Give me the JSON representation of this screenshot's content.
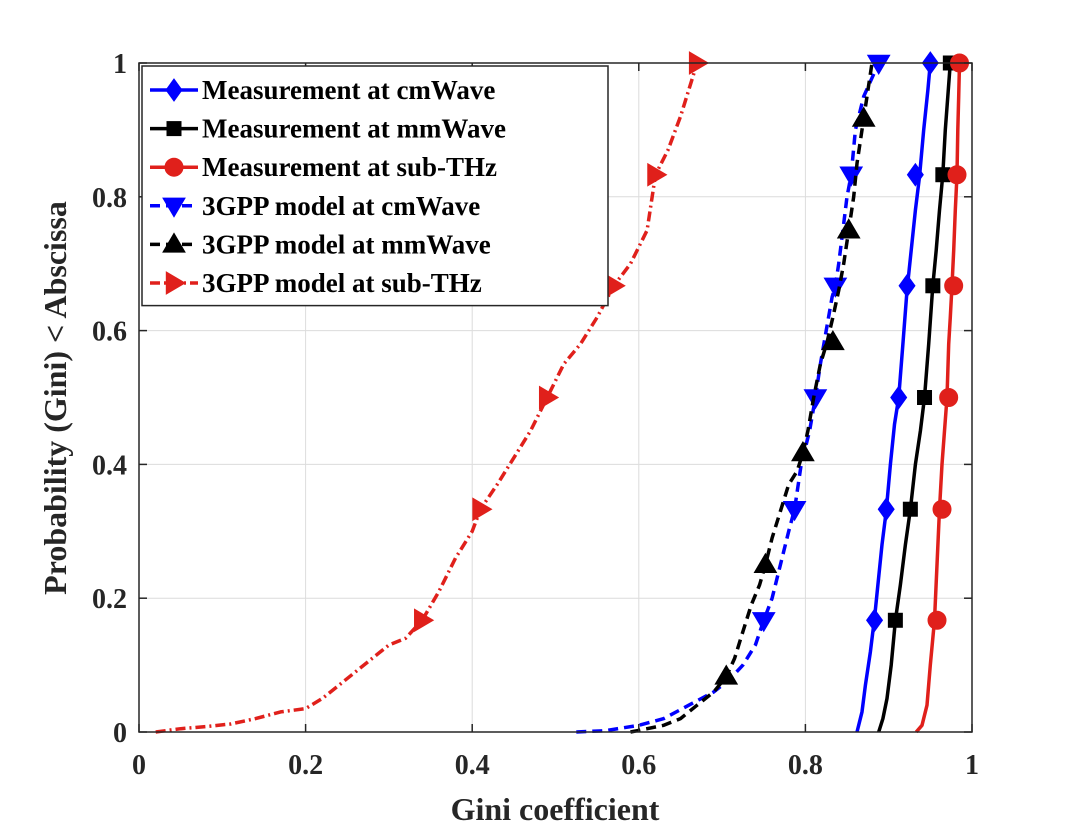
{
  "chart_data": {
    "type": "line",
    "title": "",
    "xlabel": "Gini coefficient",
    "ylabel": "Probability (Gini) < Abscissa",
    "xlim": [
      0,
      1
    ],
    "ylim": [
      0,
      1
    ],
    "xticks": [
      "0",
      "0.2",
      "0.4",
      "0.6",
      "0.8",
      "1"
    ],
    "yticks": [
      "0",
      "0.2",
      "0.4",
      "0.6",
      "0.8",
      "1"
    ],
    "grid": true,
    "legend_position": "top-left",
    "series": [
      {
        "name": "Measurement at cmWave",
        "color": "#0000ff",
        "dash": "solid",
        "marker": "diamond",
        "x": [
          0.862,
          0.868,
          0.872,
          0.878,
          0.883,
          0.887,
          0.892,
          0.897,
          0.902,
          0.907,
          0.912,
          0.917,
          0.922,
          0.927,
          0.932,
          0.937,
          0.942,
          0.947,
          0.95
        ],
        "y": [
          0.0,
          0.03,
          0.07,
          0.12,
          0.17,
          0.22,
          0.28,
          0.33,
          0.4,
          0.46,
          0.5,
          0.58,
          0.66,
          0.72,
          0.78,
          0.83,
          0.9,
          0.96,
          1.0
        ],
        "marker_x": [
          0.883,
          0.897,
          0.912,
          0.922,
          0.932,
          0.95
        ],
        "marker_y": [
          0.167,
          0.333,
          0.5,
          0.667,
          0.833,
          1.0
        ]
      },
      {
        "name": "Measurement at mmWave",
        "color": "#000000",
        "dash": "solid",
        "marker": "square",
        "x": [
          0.888,
          0.893,
          0.898,
          0.903,
          0.908,
          0.914,
          0.92,
          0.926,
          0.932,
          0.938,
          0.943,
          0.948,
          0.953,
          0.957,
          0.961,
          0.965,
          0.968,
          0.971,
          0.974
        ],
        "y": [
          0.0,
          0.02,
          0.05,
          0.1,
          0.167,
          0.22,
          0.28,
          0.333,
          0.4,
          0.45,
          0.5,
          0.58,
          0.667,
          0.72,
          0.78,
          0.833,
          0.9,
          0.95,
          1.0
        ],
        "marker_x": [
          0.908,
          0.926,
          0.943,
          0.953,
          0.965,
          0.974
        ],
        "marker_y": [
          0.167,
          0.333,
          0.5,
          0.667,
          0.833,
          1.0
        ]
      },
      {
        "name": "Measurement at sub-THz",
        "color": "#e0201b",
        "dash": "solid",
        "marker": "circle",
        "x": [
          0.933,
          0.94,
          0.946,
          0.95,
          0.955,
          0.958,
          0.961,
          0.964,
          0.967,
          0.97,
          0.972,
          0.974,
          0.976,
          0.978,
          0.98,
          0.982,
          0.983,
          0.984,
          0.985
        ],
        "y": [
          0.0,
          0.01,
          0.04,
          0.1,
          0.167,
          0.25,
          0.333,
          0.4,
          0.45,
          0.5,
          0.58,
          0.62,
          0.667,
          0.72,
          0.78,
          0.833,
          0.9,
          0.95,
          1.0
        ],
        "marker_x": [
          0.958,
          0.964,
          0.972,
          0.978,
          0.982,
          0.985
        ],
        "marker_y": [
          0.167,
          0.333,
          0.5,
          0.667,
          0.833,
          1.0
        ]
      },
      {
        "name": "3GPP model at cmWave",
        "color": "#0000ff",
        "dash": "dashed",
        "marker": "triangle-down",
        "x": [
          0.525,
          0.56,
          0.6,
          0.63,
          0.66,
          0.69,
          0.71,
          0.725,
          0.74,
          0.75,
          0.76,
          0.77,
          0.78,
          0.787,
          0.795,
          0.805,
          0.812,
          0.818,
          0.825,
          0.832,
          0.836,
          0.84,
          0.845,
          0.85,
          0.855,
          0.86,
          0.87,
          0.888
        ],
        "y": [
          0.0,
          0.002,
          0.01,
          0.02,
          0.04,
          0.06,
          0.08,
          0.1,
          0.13,
          0.167,
          0.2,
          0.25,
          0.3,
          0.333,
          0.4,
          0.45,
          0.5,
          0.55,
          0.6,
          0.65,
          0.667,
          0.7,
          0.75,
          0.8,
          0.833,
          0.9,
          0.95,
          1.0
        ],
        "marker_x": [
          0.75,
          0.787,
          0.812,
          0.836,
          0.855,
          0.888
        ],
        "marker_y": [
          0.167,
          0.333,
          0.5,
          0.667,
          0.833,
          1.0
        ]
      },
      {
        "name": "3GPP model at mmWave",
        "color": "#000000",
        "dash": "dashed",
        "marker": "triangle-up",
        "x": [
          0.59,
          0.61,
          0.63,
          0.65,
          0.67,
          0.69,
          0.705,
          0.715,
          0.725,
          0.735,
          0.745,
          0.752,
          0.76,
          0.77,
          0.78,
          0.79,
          0.797,
          0.803,
          0.81,
          0.818,
          0.826,
          0.833,
          0.84,
          0.846,
          0.852,
          0.858,
          0.862,
          0.87,
          0.88
        ],
        "y": [
          0.0,
          0.005,
          0.01,
          0.02,
          0.04,
          0.06,
          0.083,
          0.11,
          0.15,
          0.19,
          0.22,
          0.25,
          0.29,
          0.33,
          0.37,
          0.39,
          0.417,
          0.45,
          0.5,
          0.55,
          0.583,
          0.62,
          0.66,
          0.7,
          0.75,
          0.8,
          0.85,
          0.917,
          1.0
        ],
        "marker_x": [
          0.705,
          0.752,
          0.797,
          0.833,
          0.852,
          0.87
        ],
        "marker_y": [
          0.083,
          0.25,
          0.417,
          0.583,
          0.75,
          0.917
        ]
      },
      {
        "name": "3GPP model at sub-THz",
        "color": "#e0201b",
        "dash": "dashdot",
        "marker": "triangle-right",
        "x": [
          0.02,
          0.05,
          0.08,
          0.11,
          0.14,
          0.17,
          0.2,
          0.22,
          0.24,
          0.26,
          0.28,
          0.3,
          0.32,
          0.34,
          0.36,
          0.38,
          0.4,
          0.41,
          0.43,
          0.45,
          0.47,
          0.49,
          0.51,
          0.53,
          0.55,
          0.57,
          0.59,
          0.61,
          0.62,
          0.635,
          0.65,
          0.66,
          0.67
        ],
        "y": [
          0.0,
          0.005,
          0.008,
          0.012,
          0.02,
          0.03,
          0.035,
          0.05,
          0.07,
          0.09,
          0.11,
          0.13,
          0.14,
          0.167,
          0.21,
          0.26,
          0.3,
          0.333,
          0.37,
          0.41,
          0.45,
          0.5,
          0.55,
          0.58,
          0.62,
          0.667,
          0.7,
          0.75,
          0.833,
          0.87,
          0.92,
          0.96,
          1.0
        ],
        "marker_x": [
          0.34,
          0.41,
          0.49,
          0.57,
          0.62,
          0.67
        ],
        "marker_y": [
          0.167,
          0.333,
          0.5,
          0.667,
          0.833,
          1.0
        ]
      }
    ]
  }
}
